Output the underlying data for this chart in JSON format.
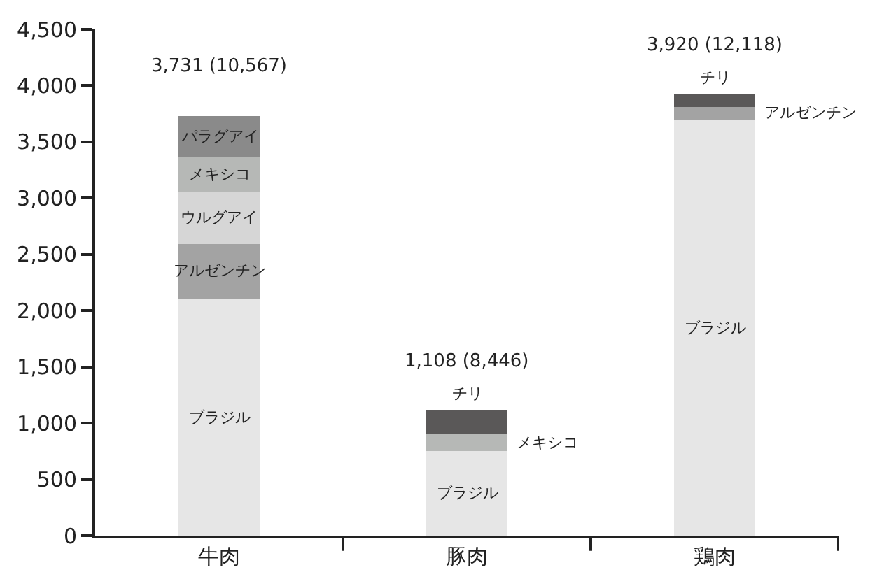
{
  "chart_data": {
    "type": "bar",
    "stacked": true,
    "categories": [
      "牛肉",
      "豚肉",
      "鶏肉"
    ],
    "series": [
      {
        "name": "ブラジル",
        "color": "#e6e6e6",
        "values": [
          2110,
          750,
          3700
        ]
      },
      {
        "name": "アルゼンチン",
        "color": "#a3a3a3",
        "values": [
          480,
          null,
          110
        ]
      },
      {
        "name": "ウルグアイ",
        "color": "#d6d6d6",
        "values": [
          470,
          null,
          null
        ]
      },
      {
        "name": "メキシコ",
        "color": "#b6b8b6",
        "values": [
          310,
          160,
          null
        ]
      },
      {
        "name": "パラグアイ",
        "color": "#8a8a8a",
        "values": [
          360,
          null,
          null
        ]
      },
      {
        "name": "チリ",
        "color": "#5a5858",
        "values": [
          null,
          200,
          110
        ]
      }
    ],
    "totals": [
      "3,731 (10,567)",
      "1,108 (8,446)",
      "3,920 (12,118)"
    ],
    "ylim": [
      0,
      4500
    ],
    "yticks": [
      0,
      500,
      {
        "value": 1000,
        "label": "1,000"
      },
      {
        "value": 1500,
        "label": "1,500"
      },
      {
        "value": 2000,
        "label": "2,000"
      },
      {
        "value": 2500,
        "label": "2,500"
      },
      {
        "value": 3000,
        "label": "3,000"
      },
      {
        "value": 3500,
        "label": "3,500"
      },
      {
        "value": 4000,
        "label": "4,000"
      },
      {
        "value": 4500,
        "label": "4,500"
      }
    ],
    "legend": false
  }
}
